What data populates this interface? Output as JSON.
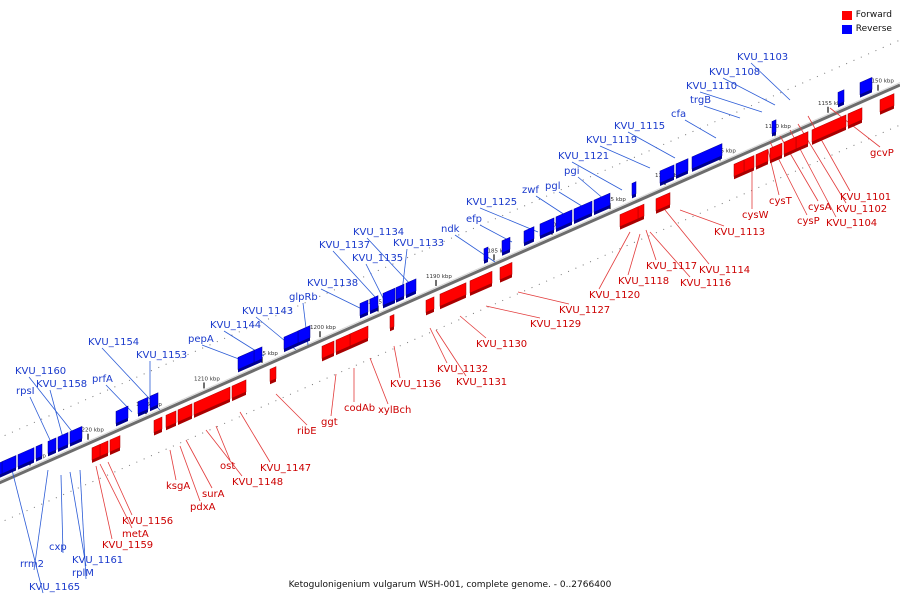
{
  "legend": {
    "forward": "Forward",
    "reverse": "Reverse"
  },
  "colors": {
    "forward": "#ff0000",
    "reverse": "#0000ff",
    "forward_label": "#cc0000",
    "reverse_label": "#1a3acc",
    "backbone": "#888888"
  },
  "caption": "Ketogulonigenium vulgarum WSH-001, complete genome. - 0..2766400",
  "ticks": [
    "1150 kbp",
    "1155 kbp",
    "1160 kbp",
    "1165 kbp",
    "1170 kbp",
    "1175 kbp",
    "1180 kbp",
    "1185 kbp",
    "1190 kbp",
    "1195 kbp",
    "1200 kbp",
    "1205 kbp",
    "1210 kbp",
    "1215 kbp",
    "1220 kbp",
    "1225 kbp"
  ],
  "reverse_labels": [
    "KVU_1103",
    "KVU_1108",
    "KVU_1110",
    "trgB",
    "cfa",
    "KVU_1115",
    "KVU_1119",
    "KVU_1121",
    "pgi",
    "pgl",
    "zwf",
    "KVU_1125",
    "efp",
    "ndk",
    "KVU_1134",
    "KVU_1137",
    "KVU_1133",
    "KVU_1135",
    "KVU_1138",
    "glpRb",
    "KVU_1143",
    "KVU_1144",
    "pepA",
    "KVU_1154",
    "KVU_1153",
    "prfA",
    "KVU_1160",
    "KVU_1158",
    "rpsI",
    "rrm2",
    "cxp",
    "KVU_1161",
    "rplM",
    "KVU_1165"
  ],
  "forward_labels": [
    "gcvP",
    "KVU_1101",
    "KVU_1102",
    "KVU_1104",
    "cysA",
    "cysT",
    "cysP",
    "cysW",
    "KVU_1113",
    "KVU_1114",
    "KVU_1117",
    "KVU_1116",
    "KVU_1118",
    "KVU_1120",
    "KVU_1127",
    "KVU_1129",
    "KVU_1130",
    "KVU_1132",
    "KVU_1131",
    "KVU_1136",
    "xylBch",
    "codAb",
    "ggt",
    "ribE",
    "KVU_1147",
    "ost",
    "KVU_1148",
    "surA",
    "pdxA",
    "ksgA",
    "KVU_1156",
    "metA",
    "KVU_1159"
  ]
}
